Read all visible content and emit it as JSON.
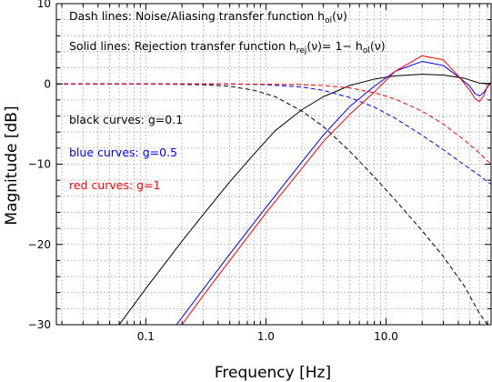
{
  "chart_data": {
    "type": "line",
    "xlabel": "Frequency [Hz]",
    "ylabel": "Magnitude [dB]",
    "xscale": "log",
    "xlim": [
      0.018,
      75
    ],
    "ylim": [
      -30,
      10
    ],
    "grid": true,
    "xtick_labels": [
      "0.1",
      "1.0",
      "10.0"
    ],
    "xticks": [
      0.1,
      1.0,
      10.0
    ],
    "ytick_labels": [
      "10",
      "0",
      "−10",
      "−20",
      "−30"
    ],
    "yticks": [
      10,
      0,
      -10,
      -20,
      -30
    ],
    "annotations": {
      "dash_prefix": "Dash lines: Noise/Aliasing transfer function h",
      "dash_sub": "ol",
      "dash_suffix": "(ν)",
      "solid_prefix": "Solid lines: Rejection transfer function h",
      "solid_sub1": "rej",
      "solid_mid": "(ν)= 1− h",
      "solid_sub2": "ol",
      "solid_suffix": "(ν)",
      "black": "black curves: g=0.1",
      "blue": "blue curves: g=0.5",
      "red": "red curves: g=1"
    },
    "colors": {
      "black": "#000000",
      "blue": "#0000ff",
      "red": "#ff0000"
    },
    "series": [
      {
        "color": "black",
        "style": "dash",
        "x": [
          0.018,
          0.1,
          0.3,
          0.5,
          0.8,
          1.2,
          2,
          3,
          5,
          8,
          12,
          20,
          30,
          45,
          60,
          70
        ],
        "y": [
          0,
          0,
          -0.1,
          -0.3,
          -0.8,
          -1.6,
          -3.4,
          -5.3,
          -8.4,
          -11.6,
          -14.5,
          -18.3,
          -21.5,
          -25.2,
          -28.6,
          -30
        ]
      },
      {
        "color": "black",
        "style": "solid",
        "x": [
          0.06,
          0.1,
          0.2,
          0.3,
          0.5,
          0.8,
          1.2,
          2,
          3,
          5,
          8,
          12,
          20,
          30,
          45,
          60,
          70,
          75
        ],
        "y": [
          -30,
          -25.5,
          -19.6,
          -16.3,
          -12.2,
          -8.7,
          -5.8,
          -3.2,
          -1.6,
          -0.2,
          0.6,
          1,
          1.2,
          1.1,
          0.7,
          0.1,
          0.05,
          0.1
        ]
      },
      {
        "color": "blue",
        "style": "dash",
        "x": [
          0.018,
          0.5,
          1,
          2,
          3,
          5,
          8,
          12,
          20,
          30,
          45,
          60,
          70,
          75
        ],
        "y": [
          0,
          0,
          -0.1,
          -0.4,
          -0.8,
          -1.7,
          -2.9,
          -4.3,
          -6.4,
          -8.2,
          -10.1,
          -11.4,
          -12.2,
          -12.5
        ]
      },
      {
        "color": "blue",
        "style": "solid",
        "x": [
          0.18,
          0.3,
          0.5,
          1,
          2,
          3,
          5,
          8,
          12,
          20,
          30,
          40,
          50,
          55,
          60,
          65,
          70,
          75
        ],
        "y": [
          -30,
          -25.6,
          -21.2,
          -15.4,
          -9.7,
          -6.4,
          -2.8,
          -0.3,
          1.6,
          2.8,
          2.3,
          0.9,
          -0.3,
          -1.2,
          -1.5,
          -1.1,
          -0.4,
          0.2
        ]
      },
      {
        "color": "red",
        "style": "dash",
        "x": [
          0.018,
          0.5,
          1,
          2,
          3,
          5,
          8,
          12,
          20,
          30,
          45,
          60,
          70,
          75
        ],
        "y": [
          0,
          0,
          -0.05,
          -0.1,
          -0.2,
          -0.5,
          -1.1,
          -1.9,
          -3.4,
          -5,
          -7,
          -8.6,
          -9.6,
          -10
        ]
      },
      {
        "color": "red",
        "style": "solid",
        "x": [
          0.2,
          0.3,
          0.5,
          1,
          2,
          3,
          5,
          8,
          12,
          20,
          30,
          40,
          50,
          55,
          60,
          65,
          70,
          75
        ],
        "y": [
          -30,
          -26.4,
          -22,
          -16.1,
          -10.5,
          -7.2,
          -3.8,
          -1,
          1.6,
          3.5,
          3,
          1,
          -0.8,
          -1.8,
          -2.2,
          -1.5,
          -0.3,
          0.2
        ]
      }
    ]
  }
}
